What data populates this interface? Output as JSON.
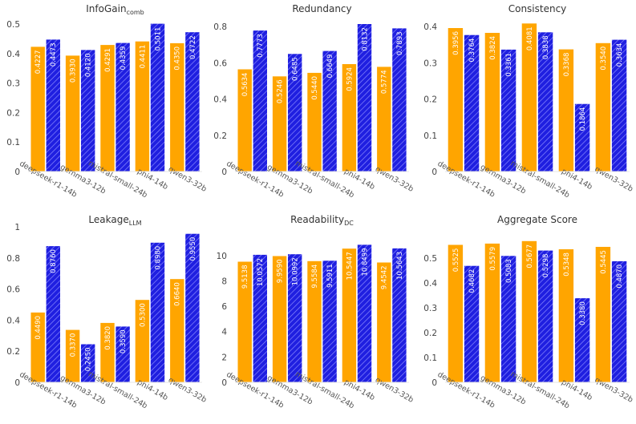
{
  "colors": {
    "series_a": "#FFA500",
    "series_b": "#1F1FE0",
    "hatch": "#8A8AFF"
  },
  "chart_data": [
    {
      "type": "bar",
      "title": "InfoGain",
      "title_sub": "comb",
      "categories": [
        "deepseek-r1-14b",
        "gemma3-12b",
        "mistral-small-24b",
        "phi4-14b",
        "qwen3-32b"
      ],
      "ylim": [
        0,
        0.5
      ],
      "yticks": [
        "0",
        "0.1",
        "0.2",
        "0.3",
        "0.4",
        "0.5"
      ],
      "series": [
        {
          "values": [
            0.4227,
            0.393,
            0.4291,
            0.4411,
            0.435
          ],
          "labels": [
            "0.4227",
            "0.3930",
            "0.4291",
            "0.4411",
            "0.4350"
          ]
        },
        {
          "values": [
            0.4473,
            0.412,
            0.4359,
            0.5011,
            0.4722
          ],
          "labels": [
            "0.4473",
            "0.4120",
            "0.4359",
            "0.5011",
            "0.4722"
          ]
        }
      ]
    },
    {
      "type": "bar",
      "title": "Redundancy",
      "title_sub": "",
      "categories": [
        "deepseek-r1-14b",
        "gemma3-12b",
        "mistral-small-24b",
        "phi4-14b",
        "qwen3-32b"
      ],
      "ylim": [
        0,
        0.8
      ],
      "yticks": [
        "0",
        "0.2",
        "0.4",
        "0.6",
        "0.8"
      ],
      "series": [
        {
          "values": [
            0.5634,
            0.5246,
            0.544,
            0.5924,
            0.5774
          ],
          "labels": [
            "0.5634",
            "0.5246",
            "0.5440",
            "0.5924",
            "0.5774"
          ]
        },
        {
          "values": [
            0.7773,
            0.6485,
            0.6649,
            0.8132,
            0.7893
          ],
          "labels": [
            "0.7773",
            "0.6485",
            "0.6649",
            "0.8132",
            "0.7893"
          ]
        }
      ]
    },
    {
      "type": "bar",
      "title": "Consistency",
      "title_sub": "",
      "categories": [
        "deepseek-r1-14b",
        "gemma3-12b",
        "mistral-small-24b",
        "phi4-14b",
        "qwen3-32b"
      ],
      "ylim": [
        0,
        0.4
      ],
      "yticks": [
        "0",
        "0.1",
        "0.2",
        "0.3",
        "0.4"
      ],
      "series": [
        {
          "values": [
            0.3956,
            0.3824,
            0.4081,
            0.3368,
            0.354
          ],
          "labels": [
            "0.3956",
            "0.3824",
            "0.4081",
            "0.3368",
            "0.3540"
          ]
        },
        {
          "values": [
            0.3764,
            0.3361,
            0.3838,
            0.1864,
            0.3634
          ],
          "labels": [
            "0.3764",
            "0.3361",
            "0.3838",
            "0.1864",
            "0.3634"
          ]
        }
      ]
    },
    {
      "type": "bar",
      "title": "Leakage",
      "title_sub": "LLM",
      "categories": [
        "deepseek-r1-14b",
        "gemma3-12b",
        "mistral-small-24b",
        "phi4-14b",
        "qwen3-32b"
      ],
      "ylim": [
        0,
        1
      ],
      "yticks": [
        "0",
        "0.2",
        "0.4",
        "0.6",
        "0.8",
        "1"
      ],
      "series": [
        {
          "values": [
            0.449,
            0.337,
            0.382,
            0.53,
            0.664
          ],
          "labels": [
            "0.4490",
            "0.3370",
            "0.3820",
            "0.5300",
            "0.6640"
          ]
        },
        {
          "values": [
            0.876,
            0.245,
            0.359,
            0.898,
            0.955
          ],
          "labels": [
            "0.8760",
            "0.2450",
            "0.3590",
            "0.8980",
            "0.9550"
          ]
        }
      ]
    },
    {
      "type": "bar",
      "title": "Readability",
      "title_sub": "DC",
      "categories": [
        "deepseek-r1-14b",
        "gemma3-12b",
        "mistral-small-24b",
        "phi4-14b",
        "qwen3-32b"
      ],
      "ylim": [
        0,
        11
      ],
      "yticks": [
        "0",
        "2",
        "4",
        "6",
        "8",
        "10"
      ],
      "series": [
        {
          "values": [
            9.5138,
            9.959,
            9.5584,
            10.5447,
            9.4542
          ],
          "labels": [
            "9.5138",
            "9.9590",
            "9.5584",
            "10.5447",
            "9.4542"
          ]
        },
        {
          "values": [
            10.0572,
            10.0992,
            9.5911,
            10.8499,
            10.5643
          ],
          "labels": [
            "10.0572",
            "10.0992",
            "9.5911",
            "10.8499",
            "10.5643"
          ]
        }
      ]
    },
    {
      "type": "bar",
      "title": "Aggregate Score",
      "title_sub": "",
      "categories": [
        "deepseek-r1-14b",
        "gemma3-12b",
        "mistral-small-24b",
        "phi4-14b",
        "qwen3-32b"
      ],
      "ylim": [
        0,
        0.58
      ],
      "yticks": [
        "0",
        "0.1",
        "0.2",
        "0.3",
        "0.4",
        "0.5"
      ],
      "series": [
        {
          "values": [
            0.5525,
            0.5579,
            0.5677,
            0.5348,
            0.5445
          ],
          "labels": [
            "0.5525",
            "0.5579",
            "0.5677",
            "0.5348",
            "0.5445"
          ]
        },
        {
          "values": [
            0.4682,
            0.5083,
            0.5298,
            0.338,
            0.487
          ],
          "labels": [
            "0.4682",
            "0.5083",
            "0.5298",
            "0.3380",
            "0.4870"
          ]
        }
      ]
    }
  ]
}
